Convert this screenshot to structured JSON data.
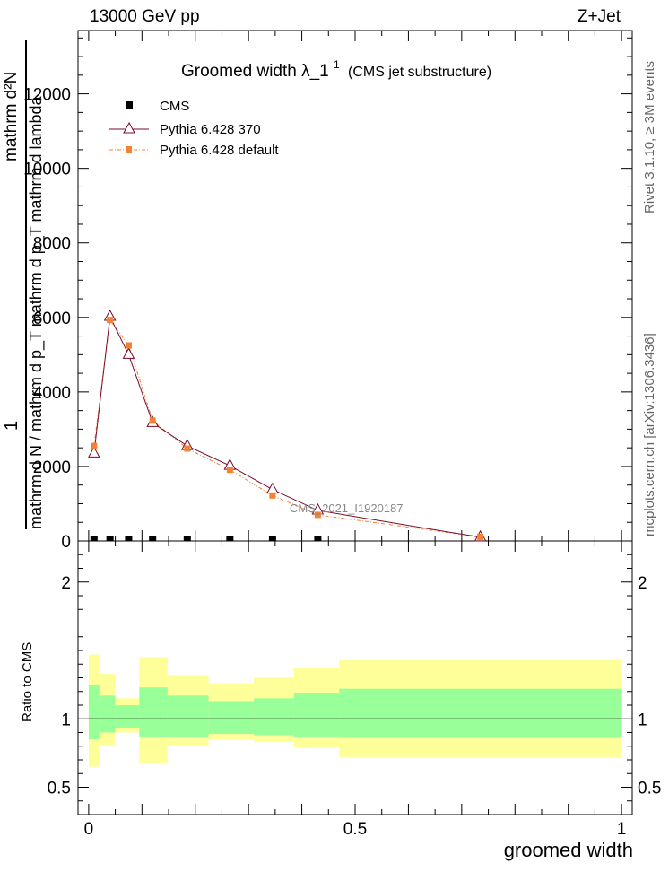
{
  "header": {
    "energy_label": "13000 GeV pp",
    "process_label": "Z+Jet"
  },
  "side": {
    "rivet_label": "Rivet 3.1.10, ≥ 3M events",
    "mcplots_label": "mcplots.cern.ch [arXiv:1306.3436]"
  },
  "plot": {
    "title_main": "Groomed width  λ_1",
    "title_sup": "1",
    "title_sub": "(CMS jet substructure)",
    "watermark": "CMS_2021_I1920187",
    "ylabel_num": "1",
    "ylabel_top": "mathrm d²N",
    "ylabel_den": "mathrm d N / mathrm d p_T mathrm d p_T mathrm d lambda",
    "xlabel": "groomed width",
    "ratio_ylabel": "Ratio to CMS"
  },
  "legend": [
    {
      "label": "CMS",
      "color": "#000000",
      "marker": "square"
    },
    {
      "label": "Pythia 6.428 370",
      "color": "#7a0a2a",
      "marker": "open-triangle"
    },
    {
      "label": "Pythia 6.428 default",
      "color": "#f58232",
      "marker": "square"
    }
  ],
  "chart_data": {
    "type": "line",
    "main": {
      "xlim": [
        -0.02,
        1.02
      ],
      "ylim": [
        0,
        13700
      ],
      "y_ticks": [
        0,
        2000,
        4000,
        6000,
        8000,
        10000,
        12000
      ],
      "y_tick_labels": [
        "0",
        "2000",
        "4000",
        "6000",
        "8000",
        "10000",
        "12000"
      ],
      "series": [
        {
          "name": "CMS",
          "color": "#000000",
          "x": [
            0.01,
            0.04,
            0.075,
            0.12,
            0.185,
            0.265,
            0.345,
            0.43
          ],
          "y": [
            0,
            0,
            0,
            0,
            0,
            0,
            0,
            0
          ]
        },
        {
          "name": "Pythia 6.428 370",
          "color": "#7a0a2a",
          "x": [
            0.01,
            0.04,
            0.075,
            0.12,
            0.185,
            0.265,
            0.345,
            0.43,
            0.735
          ],
          "y": [
            2350,
            6020,
            5000,
            3170,
            2550,
            2020,
            1380,
            820,
            100
          ]
        },
        {
          "name": "Pythia 6.428 default",
          "color": "#f58232",
          "x": [
            0.01,
            0.04,
            0.075,
            0.12,
            0.185,
            0.265,
            0.345,
            0.43,
            0.735
          ],
          "y": [
            2550,
            5930,
            5250,
            3230,
            2480,
            1910,
            1220,
            700,
            110
          ]
        }
      ]
    },
    "ratio": {
      "xlim": [
        -0.02,
        1.02
      ],
      "ylim": [
        0.3,
        2.3
      ],
      "y_ticks": [
        0.5,
        1,
        2
      ],
      "y_tick_labels": [
        "0.5",
        "1",
        "2"
      ],
      "x_ticks": [
        0,
        0.5,
        1
      ],
      "x_tick_labels": [
        "0",
        "0.5",
        "1"
      ],
      "bands": [
        {
          "x0": 0.0,
          "x1": 0.02,
          "green": [
            0.85,
            1.25
          ],
          "yellow": [
            0.65,
            1.47
          ]
        },
        {
          "x0": 0.02,
          "x1": 0.05,
          "green": [
            0.9,
            1.17
          ],
          "yellow": [
            0.8,
            1.33
          ]
        },
        {
          "x0": 0.05,
          "x1": 0.095,
          "green": [
            0.93,
            1.1
          ],
          "yellow": [
            0.9,
            1.15
          ]
        },
        {
          "x0": 0.095,
          "x1": 0.148,
          "green": [
            0.87,
            1.23
          ],
          "yellow": [
            0.68,
            1.45
          ]
        },
        {
          "x0": 0.148,
          "x1": 0.225,
          "green": [
            0.87,
            1.17
          ],
          "yellow": [
            0.8,
            1.32
          ]
        },
        {
          "x0": 0.225,
          "x1": 0.31,
          "green": [
            0.89,
            1.13
          ],
          "yellow": [
            0.85,
            1.26
          ]
        },
        {
          "x0": 0.31,
          "x1": 0.385,
          "green": [
            0.88,
            1.15
          ],
          "yellow": [
            0.83,
            1.3
          ]
        },
        {
          "x0": 0.385,
          "x1": 0.47,
          "green": [
            0.87,
            1.19
          ],
          "yellow": [
            0.79,
            1.37
          ]
        },
        {
          "x0": 0.47,
          "x1": 1.0,
          "green": [
            0.86,
            1.22
          ],
          "yellow": [
            0.72,
            1.43
          ]
        }
      ]
    }
  }
}
